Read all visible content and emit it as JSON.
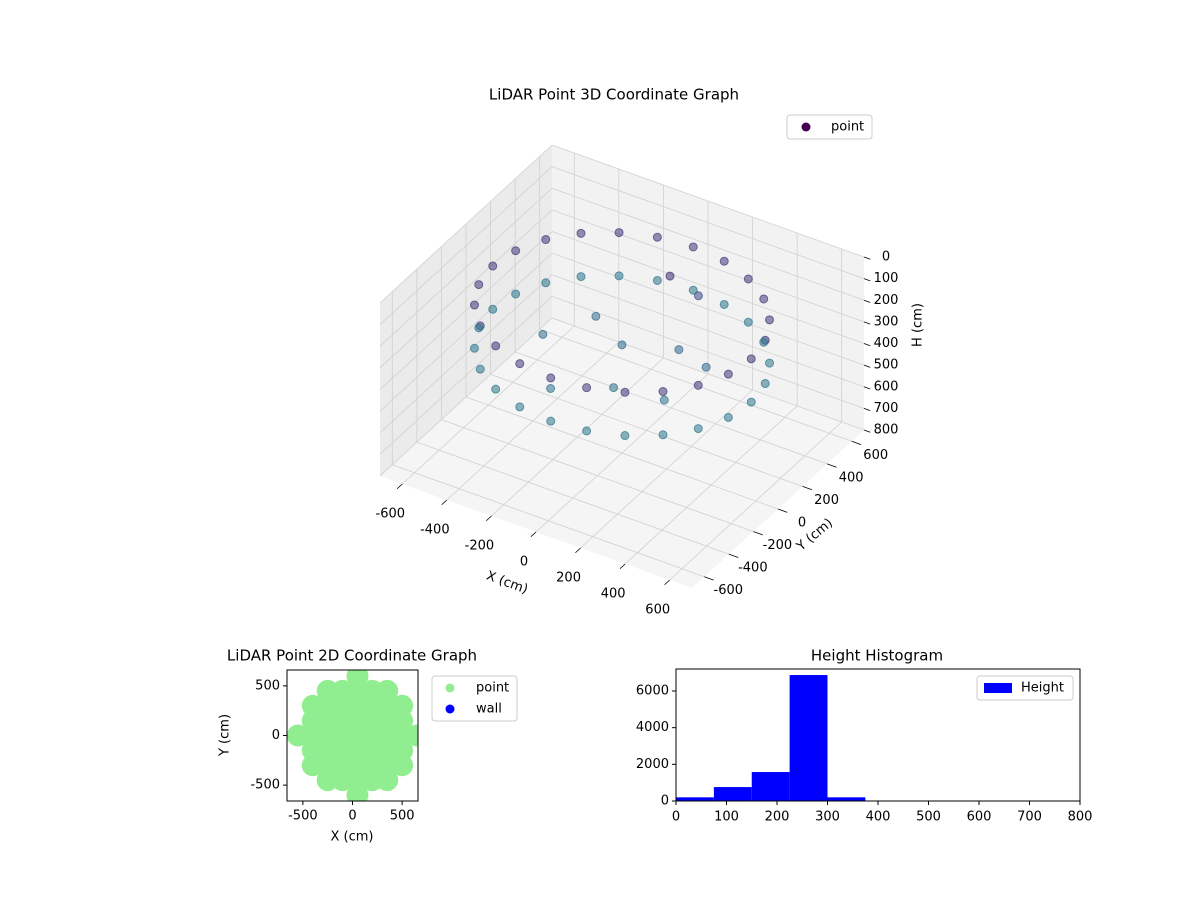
{
  "chart_data": [
    {
      "type": "scatter3d",
      "title": "LiDAR Point 3D Coordinate Graph",
      "x_label": "X (cm)",
      "y_label": "Y (cm)",
      "z_label": "H (cm)",
      "xlim": [
        -700,
        700
      ],
      "xticks": [
        -600,
        -400,
        -200,
        0,
        200,
        400,
        600
      ],
      "ylim": [
        -700,
        700
      ],
      "yticks": [
        -600,
        -400,
        -200,
        0,
        200,
        400,
        600
      ],
      "zlim": [
        0,
        800
      ],
      "zticks": [
        0,
        100,
        200,
        300,
        400,
        500,
        600,
        700,
        800
      ],
      "z_inverted": true,
      "colormap": "viridis",
      "grid": true,
      "legend": "upper right",
      "series": [
        {
          "name": "point",
          "color": "#440154",
          "x": [
            580,
            560,
            502,
            410,
            290,
            150,
            0,
            -150,
            -290,
            -410,
            -502,
            -560,
            -580,
            -560,
            -502,
            -410,
            -290,
            -150,
            0,
            150,
            290,
            410,
            502,
            560,
            580,
            560,
            502,
            410,
            290,
            150,
            0,
            -150,
            -290,
            -410,
            -502,
            -560,
            -580,
            -560,
            -502,
            -410,
            -290,
            -150,
            0,
            150,
            290,
            410,
            502,
            560,
            0,
            200,
            -200,
            100,
            -300,
            300,
            50,
            150,
            -100,
            350
          ],
          "y": [
            0,
            150,
            290,
            410,
            502,
            560,
            580,
            560,
            502,
            410,
            290,
            150,
            0,
            -150,
            -290,
            -410,
            -502,
            -560,
            -580,
            -560,
            -502,
            -410,
            -290,
            -150,
            0,
            150,
            290,
            410,
            502,
            560,
            580,
            560,
            502,
            410,
            290,
            150,
            0,
            -150,
            -290,
            -410,
            -502,
            -560,
            -580,
            -560,
            -502,
            -410,
            -290,
            -150,
            0,
            100,
            150,
            -250,
            -100,
            -200,
            300,
            350,
            -400,
            50
          ],
          "z": [
            150,
            150,
            150,
            150,
            150,
            150,
            150,
            150,
            150,
            150,
            150,
            150,
            150,
            150,
            150,
            150,
            150,
            150,
            150,
            150,
            150,
            150,
            150,
            150,
            350,
            350,
            350,
            350,
            350,
            350,
            350,
            350,
            350,
            350,
            350,
            350,
            350,
            350,
            350,
            350,
            350,
            350,
            350,
            350,
            350,
            350,
            350,
            350,
            300,
            300,
            320,
            330,
            310,
            340,
            120,
            200,
            330,
            300
          ]
        }
      ]
    },
    {
      "type": "scatter",
      "title": "LiDAR Point 2D Coordinate Graph",
      "x_label": "X (cm)",
      "y_label": "Y (cm)",
      "xlim": [
        -660,
        660
      ],
      "xticks": [
        -500,
        0,
        500
      ],
      "ylim": [
        -660,
        660
      ],
      "yticks": [
        -500,
        0,
        500
      ],
      "legend": "outside right",
      "series": [
        {
          "name": "point",
          "color": "#90ee90",
          "x": [
            -550,
            -400,
            -400,
            -400,
            -400,
            -400,
            -250,
            -250,
            -250,
            -250,
            -250,
            -250,
            -250,
            -100,
            -100,
            -100,
            -100,
            -100,
            -100,
            -100,
            50,
            50,
            50,
            50,
            50,
            50,
            50,
            50,
            50,
            200,
            200,
            200,
            200,
            200,
            200,
            200,
            350,
            350,
            350,
            350,
            350,
            350,
            350,
            500,
            500,
            500,
            500,
            500,
            650
          ],
          "y": [
            0,
            -300,
            -150,
            0,
            150,
            300,
            -450,
            -300,
            -150,
            0,
            150,
            300,
            450,
            -450,
            -300,
            -150,
            0,
            150,
            300,
            450,
            -600,
            -450,
            -300,
            -150,
            0,
            150,
            300,
            450,
            600,
            -450,
            -300,
            -150,
            0,
            150,
            300,
            450,
            -450,
            -300,
            -150,
            0,
            150,
            300,
            450,
            -300,
            -150,
            0,
            150,
            300,
            0
          ]
        },
        {
          "name": "wall",
          "color": "#0000ff",
          "x": [],
          "y": []
        }
      ]
    },
    {
      "type": "histogram",
      "title": "Height Histogram",
      "xlim": [
        0,
        800
      ],
      "xticks": [
        0,
        100,
        200,
        300,
        400,
        500,
        600,
        700,
        800
      ],
      "ylim": [
        0,
        7200
      ],
      "yticks": [
        0,
        2000,
        4000,
        6000
      ],
      "legend": "upper right",
      "bins": [
        0,
        75,
        150,
        225,
        300,
        375,
        450,
        525,
        600,
        675,
        750
      ],
      "series": [
        {
          "name": "Height",
          "color": "#0000ff",
          "values": [
            200,
            760,
            1580,
            6870,
            200,
            10,
            5,
            5,
            5,
            5
          ]
        }
      ]
    }
  ]
}
